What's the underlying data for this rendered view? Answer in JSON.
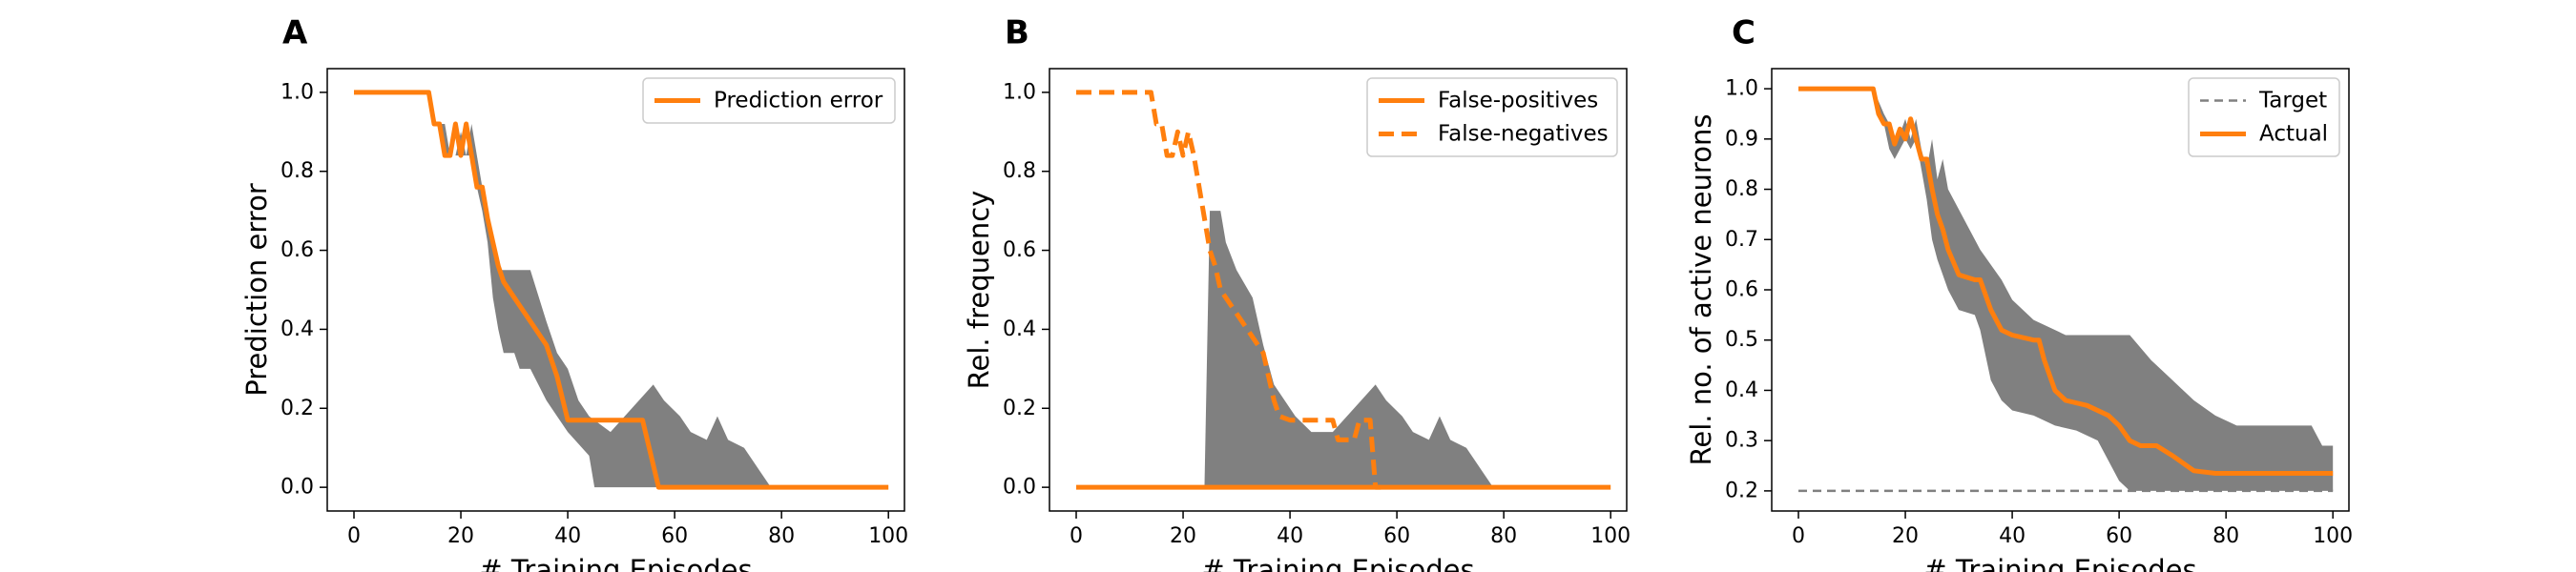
{
  "chart_data": [
    {
      "type": "line",
      "panel_label": "A",
      "xlabel": "# Training Episodes",
      "ylabel": "Prediction error",
      "xlim": [
        -5,
        103
      ],
      "ylim": [
        -0.06,
        1.06
      ],
      "xticks": [
        0,
        20,
        40,
        60,
        80,
        100
      ],
      "yticks": [
        "0.0",
        "0.2",
        "0.4",
        "0.6",
        "0.8",
        "1.0"
      ],
      "legend_position": "top-right",
      "band": {
        "color": "#808080",
        "upper": [
          [
            0,
            1.0
          ],
          [
            14,
            1.0
          ],
          [
            16,
            0.92
          ],
          [
            17,
            0.92
          ],
          [
            18,
            0.84
          ],
          [
            19,
            0.84
          ],
          [
            20,
            0.9
          ],
          [
            21,
            0.84
          ],
          [
            22,
            0.92
          ],
          [
            23,
            0.84
          ],
          [
            24,
            0.76
          ],
          [
            25,
            0.7
          ],
          [
            26,
            0.6
          ],
          [
            27,
            0.55
          ],
          [
            33,
            0.55
          ],
          [
            36,
            0.42
          ],
          [
            38,
            0.34
          ],
          [
            40,
            0.3
          ],
          [
            42,
            0.22
          ],
          [
            44,
            0.18
          ],
          [
            48,
            0.14
          ],
          [
            52,
            0.2
          ],
          [
            56,
            0.26
          ],
          [
            58,
            0.22
          ],
          [
            61,
            0.18
          ],
          [
            63,
            0.14
          ],
          [
            66,
            0.12
          ],
          [
            68,
            0.18
          ],
          [
            70,
            0.12
          ],
          [
            73,
            0.1
          ],
          [
            76,
            0.04
          ],
          [
            78,
            0.0
          ],
          [
            100,
            0.0
          ]
        ],
        "lower": [
          [
            0,
            1.0
          ],
          [
            14,
            1.0
          ],
          [
            16,
            0.92
          ],
          [
            17,
            0.84
          ],
          [
            19,
            0.84
          ],
          [
            20,
            0.84
          ],
          [
            22,
            0.84
          ],
          [
            23,
            0.76
          ],
          [
            24,
            0.7
          ],
          [
            25,
            0.62
          ],
          [
            26,
            0.48
          ],
          [
            27,
            0.4
          ],
          [
            28,
            0.34
          ],
          [
            30,
            0.34
          ],
          [
            31,
            0.3
          ],
          [
            33,
            0.3
          ],
          [
            36,
            0.22
          ],
          [
            38,
            0.18
          ],
          [
            40,
            0.14
          ],
          [
            44,
            0.08
          ],
          [
            45,
            0.0
          ],
          [
            100,
            0.0
          ]
        ]
      },
      "series": [
        {
          "name": "Prediction error",
          "color": "#ff7f0e",
          "style": "solid",
          "points": [
            [
              0,
              1.0
            ],
            [
              14,
              1.0
            ],
            [
              15,
              0.92
            ],
            [
              16,
              0.92
            ],
            [
              17,
              0.84
            ],
            [
              18,
              0.84
            ],
            [
              19,
              0.92
            ],
            [
              20,
              0.84
            ],
            [
              21,
              0.92
            ],
            [
              22,
              0.84
            ],
            [
              23,
              0.76
            ],
            [
              24,
              0.76
            ],
            [
              25,
              0.68
            ],
            [
              26,
              0.62
            ],
            [
              27,
              0.56
            ],
            [
              28,
              0.52
            ],
            [
              30,
              0.48
            ],
            [
              32,
              0.44
            ],
            [
              34,
              0.4
            ],
            [
              36,
              0.36
            ],
            [
              38,
              0.28
            ],
            [
              40,
              0.17
            ],
            [
              54,
              0.17
            ],
            [
              57,
              0.0
            ],
            [
              100,
              0.0
            ]
          ]
        }
      ]
    },
    {
      "type": "line",
      "panel_label": "B",
      "xlabel": "# Training Episodes",
      "ylabel": "Rel. frequency",
      "xlim": [
        -5,
        103
      ],
      "ylim": [
        -0.06,
        1.06
      ],
      "xticks": [
        0,
        20,
        40,
        60,
        80,
        100
      ],
      "yticks": [
        "0.0",
        "0.2",
        "0.4",
        "0.6",
        "0.8",
        "1.0"
      ],
      "legend_position": "top-right",
      "band": {
        "color": "#808080",
        "upper": [
          [
            0,
            0.0
          ],
          [
            24,
            0.0
          ],
          [
            25,
            0.7
          ],
          [
            27,
            0.7
          ],
          [
            28,
            0.62
          ],
          [
            30,
            0.55
          ],
          [
            33,
            0.48
          ],
          [
            35,
            0.36
          ],
          [
            37,
            0.26
          ],
          [
            39,
            0.22
          ],
          [
            41,
            0.18
          ],
          [
            44,
            0.14
          ],
          [
            48,
            0.14
          ],
          [
            52,
            0.2
          ],
          [
            56,
            0.26
          ],
          [
            58,
            0.22
          ],
          [
            61,
            0.18
          ],
          [
            63,
            0.14
          ],
          [
            66,
            0.12
          ],
          [
            68,
            0.18
          ],
          [
            70,
            0.12
          ],
          [
            73,
            0.1
          ],
          [
            76,
            0.04
          ],
          [
            78,
            0.0
          ],
          [
            100,
            0.0
          ]
        ],
        "lower": [
          [
            0,
            0.0
          ],
          [
            100,
            0.0
          ]
        ]
      },
      "series": [
        {
          "name": "False-positives",
          "color": "#ff7f0e",
          "style": "solid",
          "points": [
            [
              0,
              0.0
            ],
            [
              100,
              0.0
            ]
          ]
        },
        {
          "name": "False-negatives",
          "color": "#ff7f0e",
          "style": "dashed",
          "points": [
            [
              0,
              1.0
            ],
            [
              14,
              1.0
            ],
            [
              15,
              0.92
            ],
            [
              16,
              0.92
            ],
            [
              17,
              0.84
            ],
            [
              18,
              0.84
            ],
            [
              19,
              0.9
            ],
            [
              20,
              0.84
            ],
            [
              21,
              0.9
            ],
            [
              22,
              0.84
            ],
            [
              23,
              0.76
            ],
            [
              24,
              0.68
            ],
            [
              25,
              0.6
            ],
            [
              26,
              0.56
            ],
            [
              27,
              0.5
            ],
            [
              29,
              0.46
            ],
            [
              31,
              0.42
            ],
            [
              33,
              0.38
            ],
            [
              35,
              0.34
            ],
            [
              36,
              0.28
            ],
            [
              37,
              0.22
            ],
            [
              38,
              0.18
            ],
            [
              40,
              0.17
            ],
            [
              48,
              0.17
            ],
            [
              49,
              0.12
            ],
            [
              52,
              0.12
            ],
            [
              53,
              0.17
            ],
            [
              55,
              0.17
            ],
            [
              56,
              0.0
            ],
            [
              57,
              0.0
            ]
          ]
        }
      ]
    },
    {
      "type": "line",
      "panel_label": "C",
      "xlabel": "# Training Episodes",
      "ylabel": "Rel. no. of active neurons",
      "xlim": [
        -5,
        103
      ],
      "ylim": [
        0.16,
        1.04
      ],
      "xticks": [
        0,
        20,
        40,
        60,
        80,
        100
      ],
      "yticks": [
        "0.2",
        "0.3",
        "0.4",
        "0.5",
        "0.6",
        "0.7",
        "0.8",
        "0.9",
        "1.0"
      ],
      "legend_position": "top-right",
      "band": {
        "color": "#808080",
        "upper": [
          [
            0,
            1.0
          ],
          [
            14,
            1.0
          ],
          [
            16,
            0.95
          ],
          [
            17,
            0.93
          ],
          [
            18,
            0.89
          ],
          [
            19,
            0.91
          ],
          [
            20,
            0.94
          ],
          [
            21,
            0.9
          ],
          [
            22,
            0.94
          ],
          [
            23,
            0.88
          ],
          [
            24,
            0.84
          ],
          [
            25,
            0.9
          ],
          [
            26,
            0.82
          ],
          [
            27,
            0.86
          ],
          [
            28,
            0.8
          ],
          [
            30,
            0.76
          ],
          [
            34,
            0.68
          ],
          [
            38,
            0.62
          ],
          [
            40,
            0.58
          ],
          [
            44,
            0.54
          ],
          [
            48,
            0.52
          ],
          [
            50,
            0.51
          ],
          [
            62,
            0.51
          ],
          [
            66,
            0.46
          ],
          [
            70,
            0.42
          ],
          [
            74,
            0.38
          ],
          [
            78,
            0.35
          ],
          [
            82,
            0.33
          ],
          [
            96,
            0.33
          ],
          [
            98,
            0.29
          ],
          [
            100,
            0.29
          ]
        ],
        "lower": [
          [
            0,
            1.0
          ],
          [
            14,
            1.0
          ],
          [
            16,
            0.93
          ],
          [
            17,
            0.88
          ],
          [
            18,
            0.86
          ],
          [
            19,
            0.88
          ],
          [
            20,
            0.9
          ],
          [
            21,
            0.88
          ],
          [
            22,
            0.9
          ],
          [
            23,
            0.84
          ],
          [
            24,
            0.78
          ],
          [
            25,
            0.7
          ],
          [
            26,
            0.66
          ],
          [
            28,
            0.6
          ],
          [
            30,
            0.56
          ],
          [
            33,
            0.55
          ],
          [
            34,
            0.52
          ],
          [
            36,
            0.42
          ],
          [
            38,
            0.38
          ],
          [
            40,
            0.36
          ],
          [
            44,
            0.35
          ],
          [
            48,
            0.33
          ],
          [
            52,
            0.32
          ],
          [
            56,
            0.3
          ],
          [
            58,
            0.26
          ],
          [
            60,
            0.22
          ],
          [
            62,
            0.2
          ],
          [
            100,
            0.2
          ]
        ]
      },
      "series": [
        {
          "name": "Target",
          "color": "#808080",
          "style": "dashed",
          "points": [
            [
              0,
              0.2
            ],
            [
              100,
              0.2
            ]
          ]
        },
        {
          "name": "Actual",
          "color": "#ff7f0e",
          "style": "solid",
          "points": [
            [
              0,
              1.0
            ],
            [
              14,
              1.0
            ],
            [
              15,
              0.95
            ],
            [
              16,
              0.93
            ],
            [
              17,
              0.93
            ],
            [
              18,
              0.89
            ],
            [
              19,
              0.92
            ],
            [
              20,
              0.9
            ],
            [
              21,
              0.94
            ],
            [
              22,
              0.9
            ],
            [
              23,
              0.86
            ],
            [
              24,
              0.86
            ],
            [
              25,
              0.8
            ],
            [
              26,
              0.75
            ],
            [
              27,
              0.72
            ],
            [
              28,
              0.68
            ],
            [
              30,
              0.63
            ],
            [
              33,
              0.62
            ],
            [
              34,
              0.62
            ],
            [
              36,
              0.56
            ],
            [
              38,
              0.52
            ],
            [
              40,
              0.51
            ],
            [
              44,
              0.5
            ],
            [
              45,
              0.5
            ],
            [
              46,
              0.46
            ],
            [
              48,
              0.4
            ],
            [
              50,
              0.38
            ],
            [
              54,
              0.37
            ],
            [
              58,
              0.35
            ],
            [
              60,
              0.33
            ],
            [
              62,
              0.3
            ],
            [
              64,
              0.29
            ],
            [
              67,
              0.29
            ],
            [
              70,
              0.27
            ],
            [
              74,
              0.24
            ],
            [
              78,
              0.235
            ],
            [
              100,
              0.235
            ]
          ]
        }
      ]
    }
  ]
}
